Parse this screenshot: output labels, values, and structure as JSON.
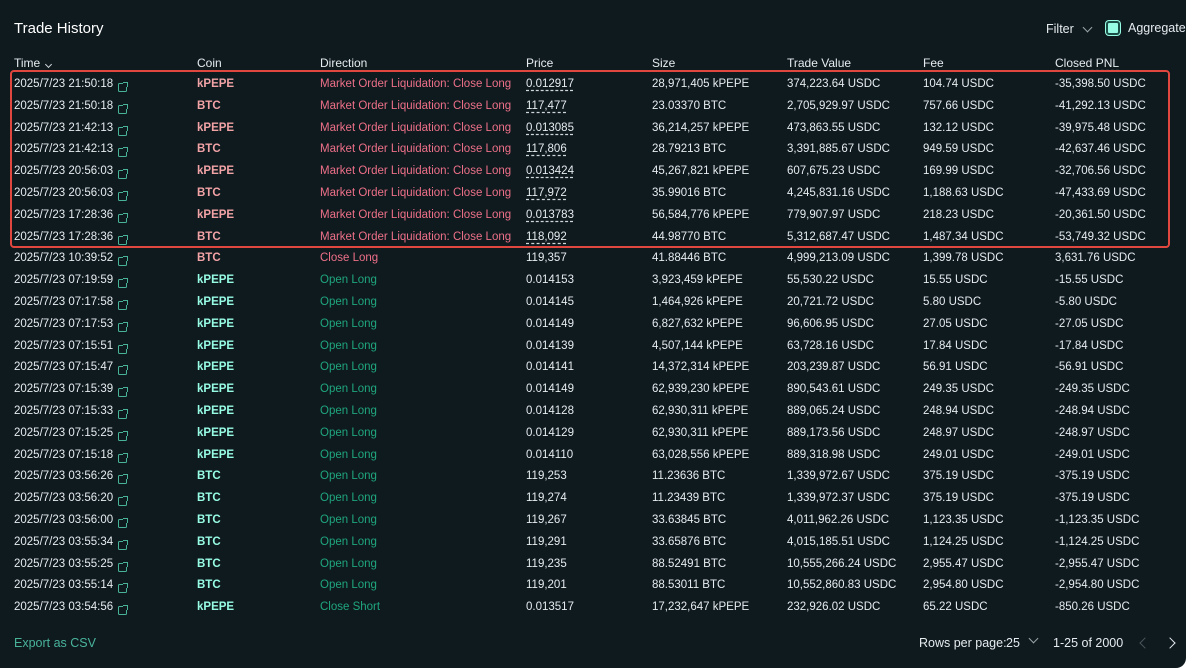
{
  "header": {
    "title": "Trade History",
    "filter_label": "Filter",
    "aggregate_label": "Aggregate",
    "aggregate_checked": true
  },
  "columns": {
    "time": "Time",
    "coin": "Coin",
    "direction": "Direction",
    "price": "Price",
    "size": "Size",
    "trade_value": "Trade Value",
    "fee": "Fee",
    "closed_pnl": "Closed PNL"
  },
  "colors": {
    "liquidation": "#ed7088",
    "open": "#1fa67d",
    "accent": "#97fce4",
    "highlight_border": "#e0473f"
  },
  "rows": [
    {
      "time": "2025/7/23 21:50:18",
      "coin": "kPEPE",
      "direction": "Market Order Liquidation: Close Long",
      "price": "0.012917",
      "size": "28,971,405 kPEPE",
      "value": "374,223.64 USDC",
      "fee": "104.74 USDC",
      "pnl": "-35,398.50 USDC",
      "kind": "liq"
    },
    {
      "time": "2025/7/23 21:50:18",
      "coin": "BTC",
      "direction": "Market Order Liquidation: Close Long",
      "price": "117,477",
      "size": "23.03370 BTC",
      "value": "2,705,929.97 USDC",
      "fee": "757.66 USDC",
      "pnl": "-41,292.13 USDC",
      "kind": "liq"
    },
    {
      "time": "2025/7/23 21:42:13",
      "coin": "kPEPE",
      "direction": "Market Order Liquidation: Close Long",
      "price": "0.013085",
      "size": "36,214,257 kPEPE",
      "value": "473,863.55 USDC",
      "fee": "132.12 USDC",
      "pnl": "-39,975.48 USDC",
      "kind": "liq"
    },
    {
      "time": "2025/7/23 21:42:13",
      "coin": "BTC",
      "direction": "Market Order Liquidation: Close Long",
      "price": "117,806",
      "size": "28.79213 BTC",
      "value": "3,391,885.67 USDC",
      "fee": "949.59 USDC",
      "pnl": "-42,637.46 USDC",
      "kind": "liq"
    },
    {
      "time": "2025/7/23 20:56:03",
      "coin": "kPEPE",
      "direction": "Market Order Liquidation: Close Long",
      "price": "0.013424",
      "size": "45,267,821 kPEPE",
      "value": "607,675.23 USDC",
      "fee": "169.99 USDC",
      "pnl": "-32,706.56 USDC",
      "kind": "liq"
    },
    {
      "time": "2025/7/23 20:56:03",
      "coin": "BTC",
      "direction": "Market Order Liquidation: Close Long",
      "price": "117,972",
      "size": "35.99016 BTC",
      "value": "4,245,831.16 USDC",
      "fee": "1,188.63 USDC",
      "pnl": "-47,433.69 USDC",
      "kind": "liq"
    },
    {
      "time": "2025/7/23 17:28:36",
      "coin": "kPEPE",
      "direction": "Market Order Liquidation: Close Long",
      "price": "0.013783",
      "size": "56,584,776 kPEPE",
      "value": "779,907.97 USDC",
      "fee": "218.23 USDC",
      "pnl": "-20,361.50 USDC",
      "kind": "liq"
    },
    {
      "time": "2025/7/23 17:28:36",
      "coin": "BTC",
      "direction": "Market Order Liquidation: Close Long",
      "price": "118,092",
      "size": "44.98770 BTC",
      "value": "5,312,687.47 USDC",
      "fee": "1,487.34 USDC",
      "pnl": "-53,749.32 USDC",
      "kind": "liq"
    },
    {
      "time": "2025/7/23 10:39:52",
      "coin": "BTC",
      "direction": "Close Long",
      "price": "119,357",
      "size": "41.88446 BTC",
      "value": "4,999,213.09 USDC",
      "fee": "1,399.78 USDC",
      "pnl": "3,631.76 USDC",
      "kind": "closelong"
    },
    {
      "time": "2025/7/23 07:19:59",
      "coin": "kPEPE",
      "direction": "Open Long",
      "price": "0.014153",
      "size": "3,923,459 kPEPE",
      "value": "55,530.22 USDC",
      "fee": "15.55 USDC",
      "pnl": "-15.55 USDC",
      "kind": "open"
    },
    {
      "time": "2025/7/23 07:17:58",
      "coin": "kPEPE",
      "direction": "Open Long",
      "price": "0.014145",
      "size": "1,464,926 kPEPE",
      "value": "20,721.72 USDC",
      "fee": "5.80 USDC",
      "pnl": "-5.80 USDC",
      "kind": "open"
    },
    {
      "time": "2025/7/23 07:17:53",
      "coin": "kPEPE",
      "direction": "Open Long",
      "price": "0.014149",
      "size": "6,827,632 kPEPE",
      "value": "96,606.95 USDC",
      "fee": "27.05 USDC",
      "pnl": "-27.05 USDC",
      "kind": "open"
    },
    {
      "time": "2025/7/23 07:15:51",
      "coin": "kPEPE",
      "direction": "Open Long",
      "price": "0.014139",
      "size": "4,507,144 kPEPE",
      "value": "63,728.16 USDC",
      "fee": "17.84 USDC",
      "pnl": "-17.84 USDC",
      "kind": "open"
    },
    {
      "time": "2025/7/23 07:15:47",
      "coin": "kPEPE",
      "direction": "Open Long",
      "price": "0.014141",
      "size": "14,372,314 kPEPE",
      "value": "203,239.87 USDC",
      "fee": "56.91 USDC",
      "pnl": "-56.91 USDC",
      "kind": "open"
    },
    {
      "time": "2025/7/23 07:15:39",
      "coin": "kPEPE",
      "direction": "Open Long",
      "price": "0.014149",
      "size": "62,939,230 kPEPE",
      "value": "890,543.61 USDC",
      "fee": "249.35 USDC",
      "pnl": "-249.35 USDC",
      "kind": "open"
    },
    {
      "time": "2025/7/23 07:15:33",
      "coin": "kPEPE",
      "direction": "Open Long",
      "price": "0.014128",
      "size": "62,930,311 kPEPE",
      "value": "889,065.24 USDC",
      "fee": "248.94 USDC",
      "pnl": "-248.94 USDC",
      "kind": "open"
    },
    {
      "time": "2025/7/23 07:15:25",
      "coin": "kPEPE",
      "direction": "Open Long",
      "price": "0.014129",
      "size": "62,930,311 kPEPE",
      "value": "889,173.56 USDC",
      "fee": "248.97 USDC",
      "pnl": "-248.97 USDC",
      "kind": "open"
    },
    {
      "time": "2025/7/23 07:15:18",
      "coin": "kPEPE",
      "direction": "Open Long",
      "price": "0.014110",
      "size": "63,028,556 kPEPE",
      "value": "889,318.98 USDC",
      "fee": "249.01 USDC",
      "pnl": "-249.01 USDC",
      "kind": "open"
    },
    {
      "time": "2025/7/23 03:56:26",
      "coin": "BTC",
      "direction": "Open Long",
      "price": "119,253",
      "size": "11.23636 BTC",
      "value": "1,339,972.67 USDC",
      "fee": "375.19 USDC",
      "pnl": "-375.19 USDC",
      "kind": "open"
    },
    {
      "time": "2025/7/23 03:56:20",
      "coin": "BTC",
      "direction": "Open Long",
      "price": "119,274",
      "size": "11.23439 BTC",
      "value": "1,339,972.37 USDC",
      "fee": "375.19 USDC",
      "pnl": "-375.19 USDC",
      "kind": "open"
    },
    {
      "time": "2025/7/23 03:56:00",
      "coin": "BTC",
      "direction": "Open Long",
      "price": "119,267",
      "size": "33.63845 BTC",
      "value": "4,011,962.26 USDC",
      "fee": "1,123.35 USDC",
      "pnl": "-1,123.35 USDC",
      "kind": "open"
    },
    {
      "time": "2025/7/23 03:55:34",
      "coin": "BTC",
      "direction": "Open Long",
      "price": "119,291",
      "size": "33.65876 BTC",
      "value": "4,015,185.51 USDC",
      "fee": "1,124.25 USDC",
      "pnl": "-1,124.25 USDC",
      "kind": "open"
    },
    {
      "time": "2025/7/23 03:55:25",
      "coin": "BTC",
      "direction": "Open Long",
      "price": "119,235",
      "size": "88.52491 BTC",
      "value": "10,555,266.24 USDC",
      "fee": "2,955.47 USDC",
      "pnl": "-2,955.47 USDC",
      "kind": "open"
    },
    {
      "time": "2025/7/23 03:55:14",
      "coin": "BTC",
      "direction": "Open Long",
      "price": "119,201",
      "size": "88.53011 BTC",
      "value": "10,552,860.83 USDC",
      "fee": "2,954.80 USDC",
      "pnl": "-2,954.80 USDC",
      "kind": "open"
    },
    {
      "time": "2025/7/23 03:54:56",
      "coin": "kPEPE",
      "direction": "Close Short",
      "price": "0.013517",
      "size": "17,232,647 kPEPE",
      "value": "232,926.02 USDC",
      "fee": "65.22 USDC",
      "pnl": "-850.26 USDC",
      "kind": "closeshort"
    }
  ],
  "footer": {
    "export_label": "Export as CSV",
    "rows_per_page_label": "Rows per page:",
    "rows_per_page_value": "25",
    "range_label": "1-25 of 2000"
  }
}
